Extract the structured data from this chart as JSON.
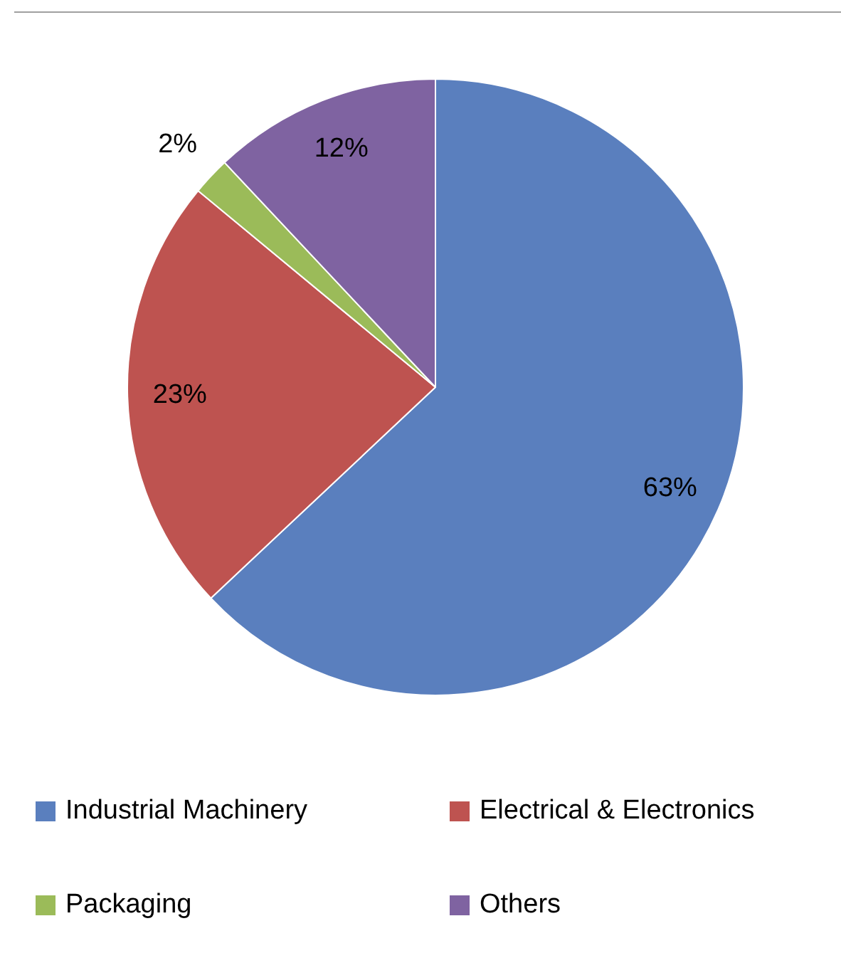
{
  "chart_data": {
    "type": "pie",
    "categories": [
      "Industrial Machinery",
      "Electrical & Electronics",
      "Packaging",
      "Others"
    ],
    "values": [
      63,
      23,
      2,
      12
    ],
    "colors": [
      "#5a7fbe",
      "#be5350",
      "#9bbb59",
      "#7f63a1"
    ],
    "value_labels": [
      "63%",
      "23%",
      "2%",
      "12%"
    ],
    "legend": "bottom"
  }
}
